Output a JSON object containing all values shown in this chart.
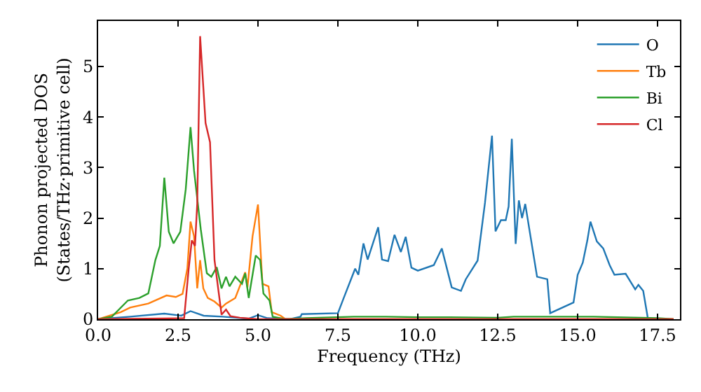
{
  "chart_data": {
    "type": "line",
    "xlabel": "Frequency (THz)",
    "ylabel": "Phonon projected DOS\n(States/THz·primitive cell)",
    "xlim": [
      0,
      18.2
    ],
    "ylim": [
      0,
      5.9
    ],
    "xticks": [
      {
        "value": 0,
        "label": "0.0"
      },
      {
        "value": 2.5,
        "label": "2.5"
      },
      {
        "value": 5,
        "label": "5.0"
      },
      {
        "value": 7.5,
        "label": "7.5"
      },
      {
        "value": 10,
        "label": "10.0"
      },
      {
        "value": 12.5,
        "label": "12.5"
      },
      {
        "value": 15,
        "label": "15.0"
      },
      {
        "value": 17.5,
        "label": "17.5"
      }
    ],
    "yticks": [
      0,
      1,
      2,
      3,
      4,
      5
    ],
    "legend": "top right",
    "marker": "none",
    "line_style": "solid",
    "series": [
      {
        "name": "O",
        "color": "#1f77b4",
        "x": [
          0,
          1.0,
          2.07,
          2.6,
          2.89,
          3.3,
          3.9,
          4.7,
          5.0,
          5.3,
          6.0,
          6.33,
          6.37,
          7.5,
          7.67,
          8.04,
          8.14,
          8.3,
          8.43,
          8.76,
          8.88,
          9.07,
          9.27,
          9.47,
          9.62,
          9.8,
          10.0,
          10.5,
          10.75,
          11.06,
          11.35,
          11.5,
          11.87,
          12.1,
          12.32,
          12.43,
          12.6,
          12.75,
          12.84,
          12.94,
          13.06,
          13.16,
          13.26,
          13.36,
          13.73,
          14.05,
          14.14,
          14.87,
          15.0,
          15.16,
          15.3,
          15.4,
          15.6,
          15.8,
          16.0,
          16.15,
          16.5,
          16.8,
          16.9,
          17.05,
          17.2
        ],
        "values": [
          0,
          0.05,
          0.11,
          0.07,
          0.16,
          0.07,
          0.05,
          0.01,
          0.08,
          0.02,
          0,
          0.05,
          0.1,
          0.12,
          0.4,
          1.0,
          0.88,
          1.5,
          1.18,
          1.82,
          1.18,
          1.15,
          1.67,
          1.33,
          1.63,
          1.02,
          0.96,
          1.07,
          1.4,
          0.63,
          0.56,
          0.79,
          1.16,
          2.3,
          3.63,
          1.74,
          1.96,
          1.96,
          2.23,
          3.57,
          1.49,
          2.35,
          2.0,
          2.28,
          0.84,
          0.79,
          0.12,
          0.33,
          0.88,
          1.12,
          1.55,
          1.93,
          1.54,
          1.4,
          1.07,
          0.88,
          0.9,
          0.59,
          0.68,
          0.56,
          0
        ]
      },
      {
        "name": "Tb",
        "color": "#ff7f0e",
        "x": [
          0,
          0.71,
          1.0,
          1.57,
          2.14,
          2.43,
          2.64,
          2.79,
          2.89,
          3.0,
          3.1,
          3.19,
          3.29,
          3.43,
          3.64,
          3.86,
          4.0,
          4.29,
          4.6,
          4.67,
          4.83,
          5.0,
          5.14,
          5.33,
          5.43,
          5.71,
          5.86,
          18.0
        ],
        "values": [
          0,
          0.14,
          0.23,
          0.31,
          0.47,
          0.44,
          0.5,
          1.0,
          1.93,
          1.64,
          0.61,
          1.17,
          0.61,
          0.42,
          0.35,
          0.23,
          0.31,
          0.42,
          0.93,
          0.63,
          1.64,
          2.27,
          0.7,
          0.65,
          0.14,
          0.07,
          0,
          0
        ]
      },
      {
        "name": "Bi",
        "color": "#2ca02c",
        "x": [
          0,
          0.43,
          0.93,
          1.29,
          1.57,
          1.79,
          1.93,
          2.07,
          2.21,
          2.36,
          2.57,
          2.74,
          2.89,
          3.0,
          3.21,
          3.4,
          3.54,
          3.71,
          3.86,
          4.0,
          4.11,
          4.29,
          4.5,
          4.6,
          4.71,
          4.93,
          5.07,
          5.17,
          5.36,
          5.46,
          5.86,
          6.5,
          8.0,
          9.0,
          10.0,
          11.0,
          12.5,
          13.0,
          15.5,
          17.5,
          18.0
        ],
        "values": [
          0,
          0.05,
          0.37,
          0.42,
          0.51,
          1.17,
          1.45,
          2.8,
          1.73,
          1.5,
          1.73,
          2.57,
          3.8,
          2.94,
          1.78,
          0.91,
          0.84,
          1.03,
          0.61,
          0.84,
          0.65,
          0.84,
          0.7,
          0.91,
          0.42,
          1.26,
          1.17,
          0.51,
          0.37,
          0.05,
          0,
          0.02,
          0.05,
          0.05,
          0.04,
          0.04,
          0.03,
          0.05,
          0.05,
          0.02,
          0
        ]
      },
      {
        "name": "Cl",
        "color": "#d62728",
        "x": [
          0,
          2.69,
          2.83,
          2.93,
          3.03,
          3.1,
          3.19,
          3.36,
          3.5,
          3.64,
          3.86,
          4.0,
          4.14,
          4.43,
          5.0,
          18.0
        ],
        "values": [
          0,
          0.02,
          0.98,
          1.56,
          1.45,
          2.29,
          5.6,
          3.88,
          3.5,
          1.17,
          0.09,
          0.19,
          0.06,
          0.03,
          0,
          0
        ]
      }
    ]
  }
}
